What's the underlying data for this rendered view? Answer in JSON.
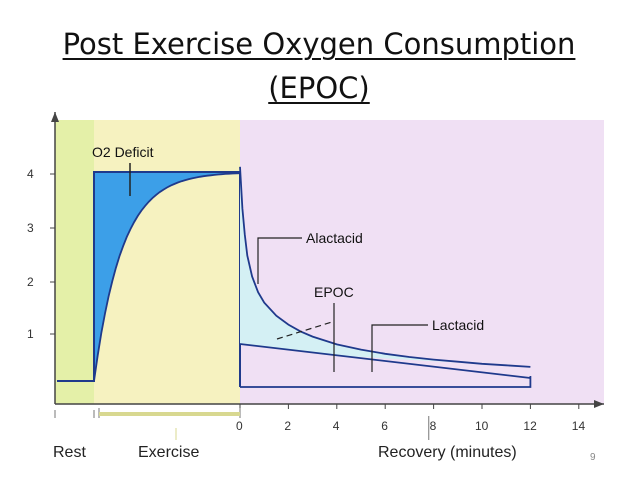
{
  "slide": {
    "title_line1": "Post Exercise Oxygen Consumption",
    "title_line2": "(EPOC)",
    "page_number": "9"
  },
  "colors": {
    "deficit_blue": "#3c9fe8",
    "curve_navy": "#1f3a8c",
    "rest_bg": "#e4f0a8",
    "exercise_bg": "#f6f2c0",
    "recovery_bg": "#f0e0f4",
    "alactacid_fill": "#d4f0f4",
    "axis": "#444444"
  },
  "chart_data": {
    "type": "line",
    "title": "",
    "xlabel": "Recovery (minutes)",
    "ylabel": "",
    "xlim": [
      0,
      14
    ],
    "ylim": [
      0,
      4
    ],
    "x_ticks": [
      "0",
      "2",
      "4",
      "6",
      "8",
      "10",
      "12",
      "14"
    ],
    "y_ticks": [
      "1",
      "2",
      "3",
      "4"
    ],
    "phases": [
      "Rest",
      "Exercise",
      "Recovery (minutes)"
    ],
    "annotations": [
      "O2 Deficit",
      "Alactacid",
      "EPOC",
      "Lactacid"
    ],
    "series": [
      {
        "name": "",
        "x": [
          0,
          0.1,
          0.2,
          0.3,
          0.5,
          0.75,
          1,
          1.5,
          2,
          2.5,
          3,
          4,
          5,
          6,
          7,
          8,
          9,
          10,
          11,
          12
        ],
        "y": [
          4.1,
          3.3,
          2.8,
          2.4,
          2.0,
          1.7,
          1.5,
          1.25,
          1.08,
          0.95,
          0.85,
          0.7,
          0.6,
          0.52,
          0.46,
          0.41,
          0.37,
          0.33,
          0.3,
          0.27
        ]
      }
    ]
  }
}
